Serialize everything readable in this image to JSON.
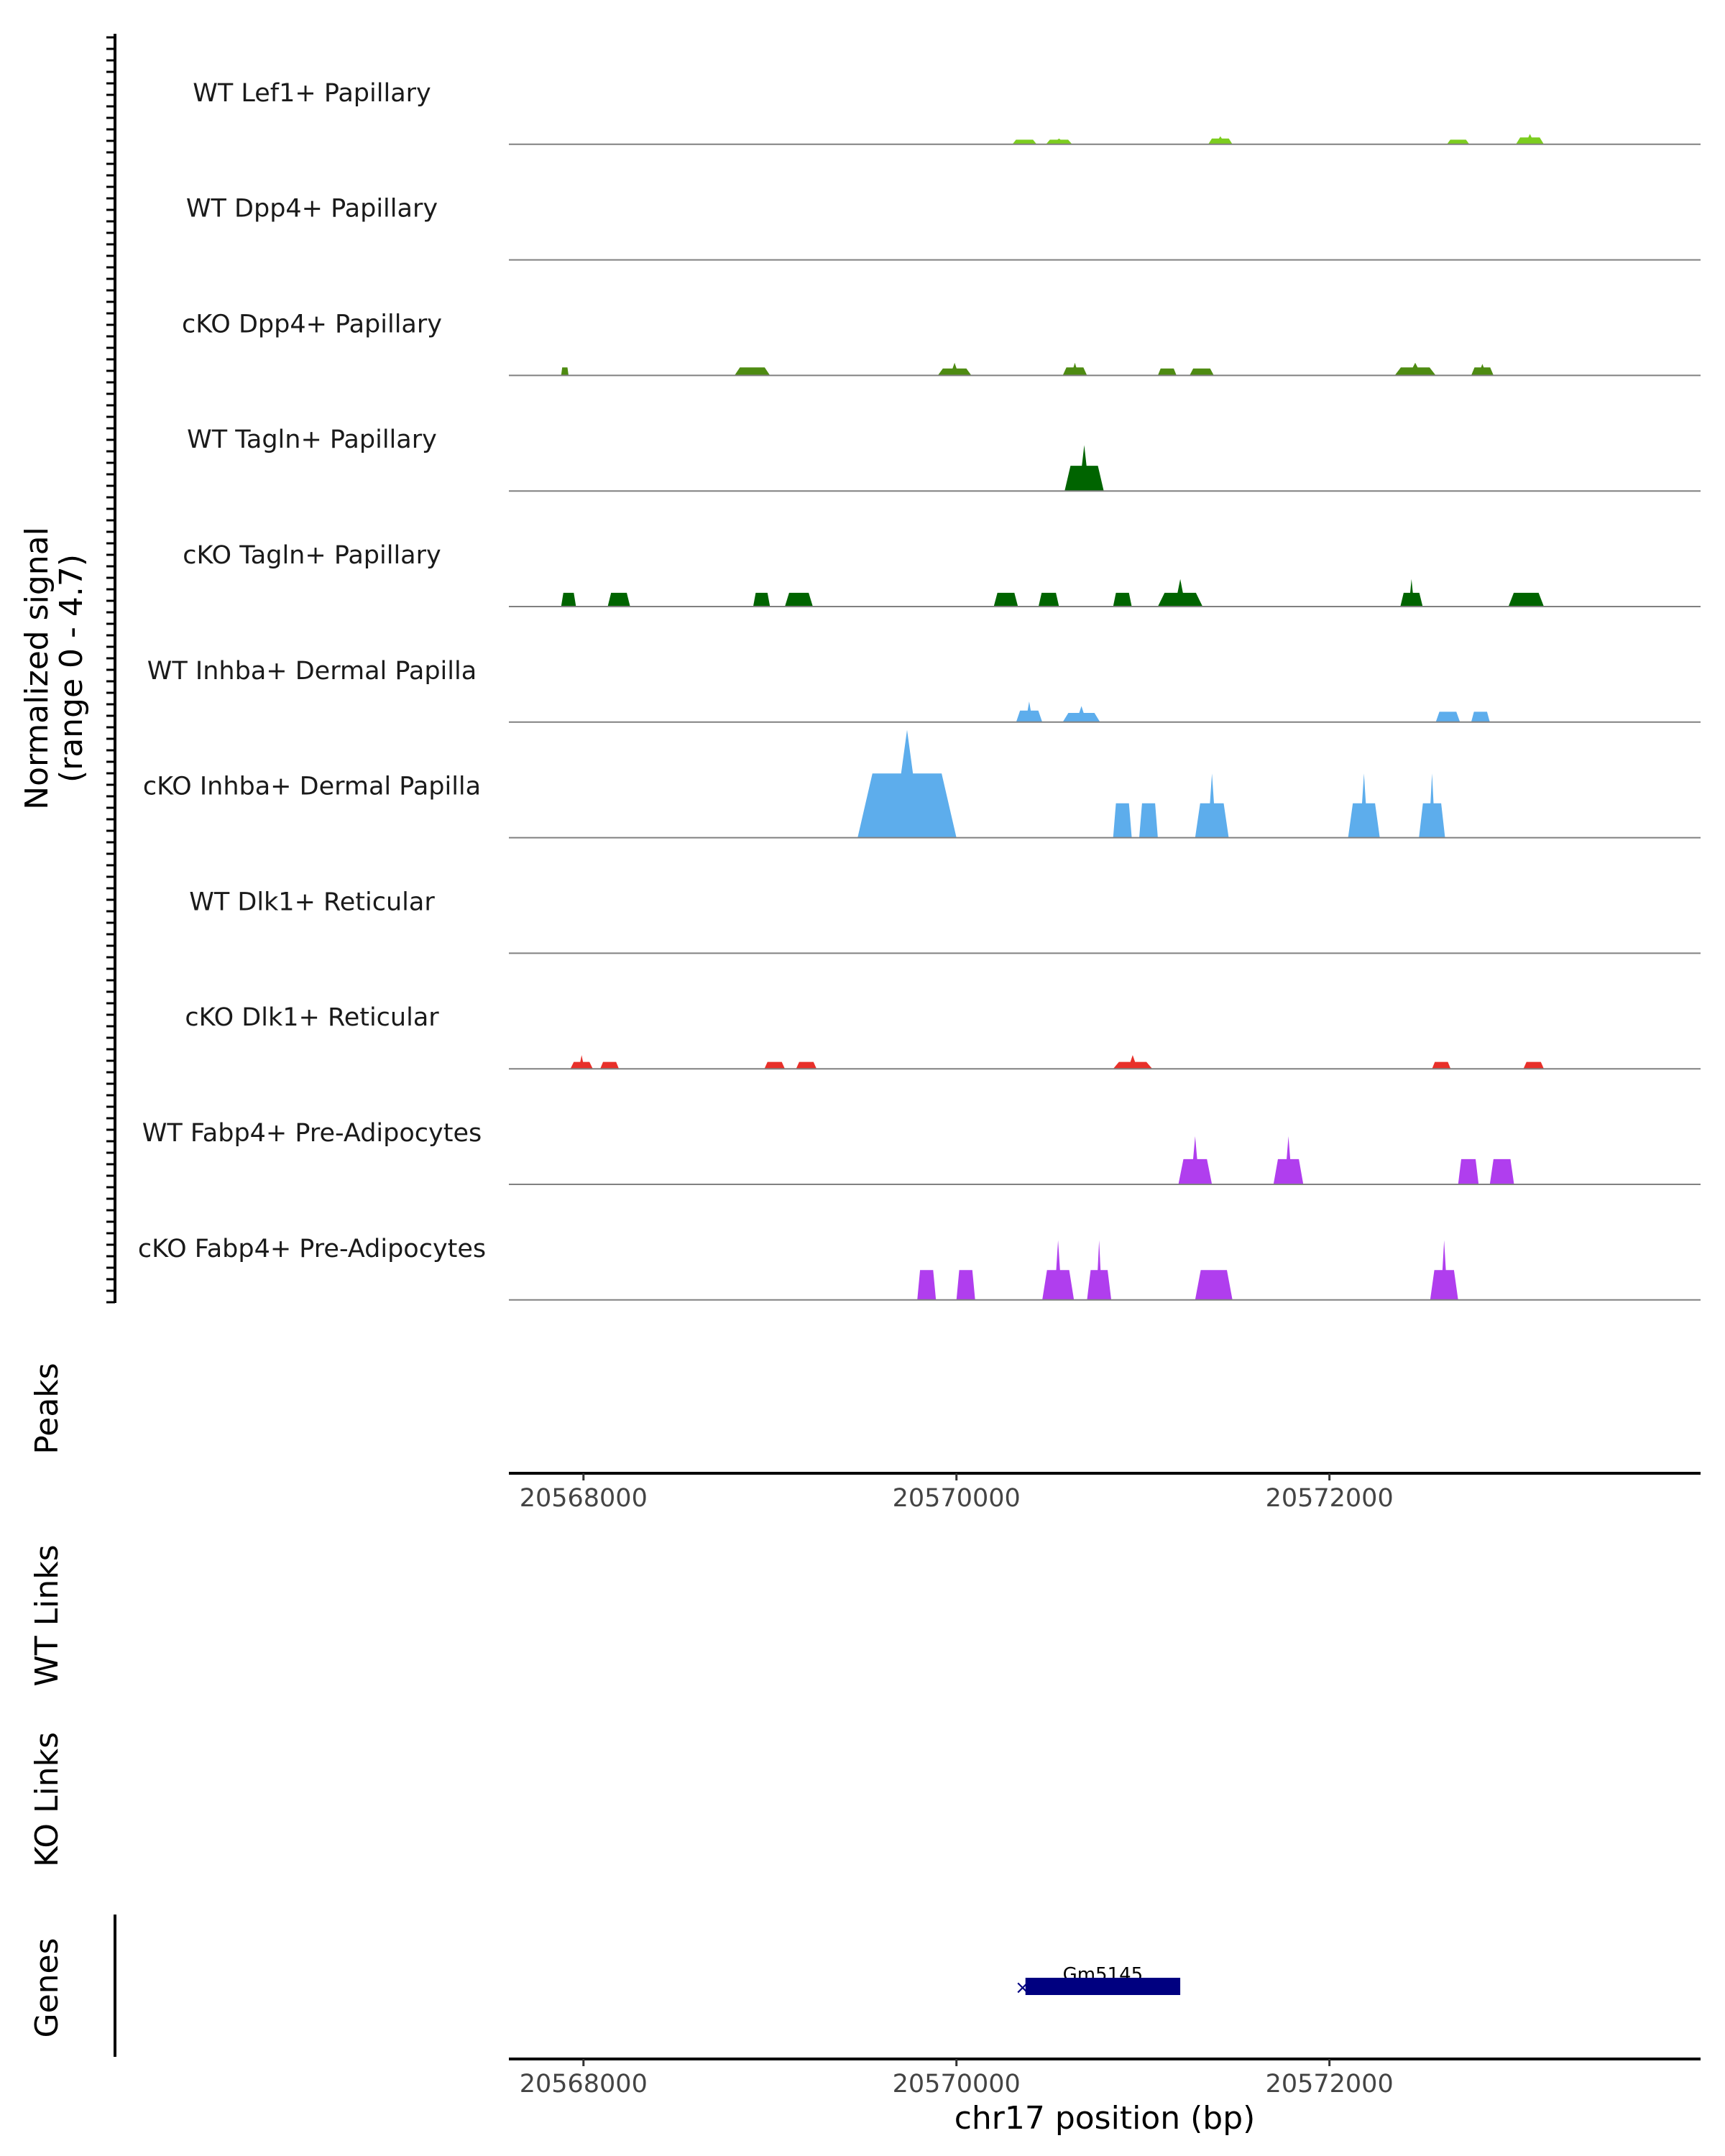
{
  "chart_data": {
    "type": "area",
    "chromosome": "chr17",
    "xlim": [
      20567600,
      20573990
    ],
    "ylim": [
      0,
      4.7
    ],
    "coverage_title_line1": "Normalized signal",
    "coverage_title_line2": "(range 0 - 4.7)",
    "tracks": [
      {
        "label": "WT Lef1+ Papillary",
        "color": "#7CCD1F",
        "peaks": [
          [
            20570300,
            20570430,
            0.2,
            0.2
          ],
          [
            20570480,
            20570620,
            0.2,
            0.25
          ],
          [
            20571350,
            20571480,
            0.25,
            0.35
          ],
          [
            20572630,
            20572750,
            0.2,
            0.2
          ],
          [
            20573000,
            20573150,
            0.3,
            0.45
          ]
        ]
      },
      {
        "label": "WT Dpp4+ Papillary",
        "color": "#4E8B12",
        "peaks": []
      },
      {
        "label": "cKO Dpp4+ Papillary",
        "color": "#4E8B12",
        "peaks": [
          [
            20567880,
            20567920,
            0.35,
            0.35
          ],
          [
            20568810,
            20569000,
            0.35,
            0.35
          ],
          [
            20569900,
            20570080,
            0.3,
            0.55
          ],
          [
            20570570,
            20570700,
            0.35,
            0.55
          ],
          [
            20571080,
            20571180,
            0.3,
            0.3
          ],
          [
            20571250,
            20571380,
            0.3,
            0.3
          ],
          [
            20572350,
            20572570,
            0.35,
            0.55
          ],
          [
            20572760,
            20572880,
            0.35,
            0.5
          ]
        ]
      },
      {
        "label": "WT Tagln+ Papillary",
        "color": "#006400",
        "peaks": [
          [
            20570580,
            20570790,
            1.1,
            2.0
          ]
        ]
      },
      {
        "label": "cKO Tagln+ Papillary",
        "color": "#006400",
        "peaks": [
          [
            20567880,
            20567960,
            0.6,
            0.6
          ],
          [
            20568130,
            20568250,
            0.6,
            0.6
          ],
          [
            20568910,
            20569000,
            0.6,
            0.6
          ],
          [
            20569080,
            20569230,
            0.6,
            0.6
          ],
          [
            20570200,
            20570330,
            0.6,
            0.6
          ],
          [
            20570440,
            20570550,
            0.6,
            0.6
          ],
          [
            20570840,
            20570940,
            0.6,
            0.6
          ],
          [
            20571080,
            20571320,
            0.6,
            1.2
          ],
          [
            20572380,
            20572500,
            0.6,
            1.2
          ],
          [
            20572960,
            20573150,
            0.6,
            0.6
          ]
        ]
      },
      {
        "label": "WT Inhba+ Dermal Papilla",
        "color": "#5DADEC",
        "peaks": [
          [
            20570320,
            20570460,
            0.5,
            0.9
          ],
          [
            20570570,
            20570770,
            0.4,
            0.7
          ],
          [
            20572570,
            20572700,
            0.45,
            0.45
          ],
          [
            20572760,
            20572860,
            0.45,
            0.45
          ]
        ]
      },
      {
        "label": "cKO Inhba+ Dermal Papilla",
        "color": "#5DADEC",
        "peaks": [
          [
            20569470,
            20570000,
            2.8,
            4.7
          ],
          [
            20570840,
            20570940,
            1.5,
            1.5
          ],
          [
            20570980,
            20571080,
            1.5,
            1.5
          ],
          [
            20571280,
            20571460,
            1.5,
            2.8
          ],
          [
            20572100,
            20572270,
            1.5,
            2.8
          ],
          [
            20572480,
            20572620,
            1.5,
            2.8
          ]
        ]
      },
      {
        "label": "WT Dlk1+ Reticular",
        "color": "#E8302A",
        "peaks": []
      },
      {
        "label": "cKO Dlk1+ Reticular",
        "color": "#E8302A",
        "peaks": [
          [
            20567930,
            20568050,
            0.3,
            0.6
          ],
          [
            20568090,
            20568190,
            0.3,
            0.3
          ],
          [
            20568970,
            20569080,
            0.3,
            0.3
          ],
          [
            20569140,
            20569250,
            0.3,
            0.3
          ],
          [
            20570840,
            20571050,
            0.3,
            0.6
          ],
          [
            20572550,
            20572650,
            0.3,
            0.3
          ],
          [
            20573040,
            20573150,
            0.3,
            0.3
          ]
        ]
      },
      {
        "label": "WT Fabp4+ Pre-Adipocytes",
        "color": "#B03EEE",
        "peaks": [
          [
            20571190,
            20571370,
            1.1,
            2.1
          ],
          [
            20571700,
            20571860,
            1.1,
            2.1
          ],
          [
            20572690,
            20572800,
            1.1,
            1.1
          ],
          [
            20572860,
            20572990,
            1.1,
            1.1
          ]
        ]
      },
      {
        "label": "cKO Fabp4+ Pre-Adipocytes",
        "color": "#B03EEE",
        "peaks": [
          [
            20569790,
            20569890,
            1.3,
            1.3
          ],
          [
            20570000,
            20570100,
            1.3,
            1.3
          ],
          [
            20570460,
            20570630,
            1.3,
            2.6
          ],
          [
            20570700,
            20570830,
            1.3,
            2.6
          ],
          [
            20571280,
            20571480,
            1.3,
            1.3
          ],
          [
            20572540,
            20572690,
            1.3,
            2.6
          ]
        ]
      }
    ],
    "side_titles": {
      "peaks": "Peaks",
      "wt_links": "WT Links",
      "ko_links": "KO Links",
      "genes": "Genes"
    },
    "x_ticks": [
      20568000,
      20570000,
      20572000
    ],
    "x_tick_labels": [
      "20568000",
      "20570000",
      "20572000"
    ],
    "xlabel": "chr17 position (bp)",
    "gene": {
      "name": "Gm5145",
      "start": 20570370,
      "end": 20571200,
      "color": "#000080",
      "strand_marker": "×"
    }
  }
}
